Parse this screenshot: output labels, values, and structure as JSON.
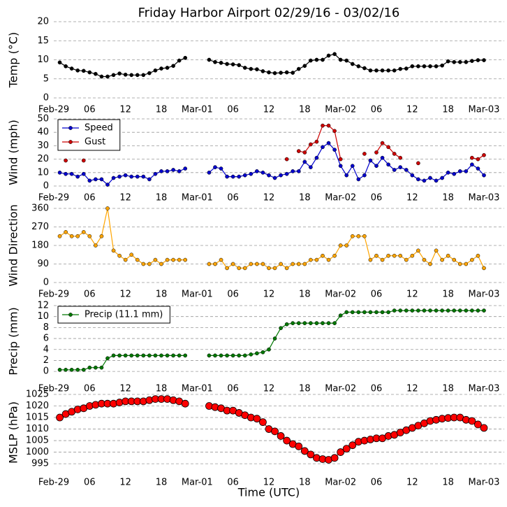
{
  "title": "Friday Harbor Airport 02/29/16 - 03/02/16",
  "x_label": "Time (UTC)",
  "chart_data": [
    {
      "type": "line",
      "y_label": "Temp (°C)",
      "xlim": [
        0,
        72
      ],
      "ylim": [
        0,
        20
      ],
      "yticks": [
        0,
        5,
        10,
        15,
        20
      ],
      "grid": true,
      "xticks": [
        {
          "value": 0,
          "label": "Feb-29"
        },
        {
          "value": 6,
          "label": "06"
        },
        12,
        18,
        {
          "value": 24,
          "label": "Mar-01"
        },
        {
          "value": 30,
          "label": "06"
        },
        {
          "value": 36,
          "label": "12"
        },
        {
          "value": 42,
          "label": "18"
        },
        {
          "value": 48,
          "label": "Mar-02"
        },
        {
          "value": 54,
          "label": "06"
        },
        {
          "value": 60,
          "label": "12"
        },
        {
          "value": 66,
          "label": "18"
        },
        {
          "value": 72,
          "label": "Mar-03"
        }
      ],
      "x": [
        1,
        2,
        3,
        4,
        5,
        6,
        7,
        8,
        9,
        10,
        11,
        12,
        13,
        14,
        15,
        16,
        17,
        18,
        19,
        20,
        21,
        22,
        23,
        24,
        25,
        26,
        27,
        28,
        29,
        30,
        31,
        32,
        33,
        34,
        35,
        36,
        37,
        38,
        39,
        40,
        41,
        42,
        43,
        44,
        45,
        46,
        47,
        48,
        49,
        50,
        51,
        52,
        53,
        54,
        55,
        56,
        57,
        58,
        59,
        60,
        61,
        62,
        63,
        64,
        65,
        66,
        67,
        68,
        69,
        70,
        71,
        72
      ],
      "series": [
        {
          "color": "#000000",
          "values": [
            9.3,
            8.3,
            7.7,
            7.2,
            7.1,
            6.7,
            6.3,
            5.6,
            5.6,
            6,
            6.4,
            6.1,
            6,
            6,
            6,
            6.5,
            7.2,
            7.7,
            7.9,
            8.4,
            9.8,
            10.5,
            null,
            null,
            null,
            10,
            9.4,
            9.2,
            8.9,
            8.8,
            8.6,
            7.9,
            7.6,
            7.5,
            7,
            6.7,
            6.5,
            6.6,
            6.7,
            6.6,
            7.6,
            8.4,
            9.8,
            10,
            10,
            11.1,
            11.5,
            10,
            9.8,
            8.9,
            8.3,
            7.8,
            7.2,
            7.2,
            7.2,
            7.2,
            7.2,
            7.6,
            7.7,
            8.3,
            8.3,
            8.3,
            8.3,
            8.3,
            8.5,
            9.6,
            9.4,
            9.4,
            9.4,
            9.7,
            9.9,
            9.9
          ]
        }
      ]
    },
    {
      "type": "line",
      "y_label": "Wind (mph)",
      "xlim": [
        0,
        72
      ],
      "ylim": [
        0,
        50
      ],
      "yticks": [
        0,
        10,
        20,
        30,
        40,
        50
      ],
      "grid": true,
      "legend": "upper left",
      "xticks": [
        {
          "value": 0,
          "label": "Feb-29"
        },
        {
          "value": 6,
          "label": "06"
        },
        12,
        18,
        {
          "value": 24,
          "label": "Mar-01"
        },
        {
          "value": 30,
          "label": "06"
        },
        {
          "value": 36,
          "label": "12"
        },
        {
          "value": 42,
          "label": "18"
        },
        {
          "value": 48,
          "label": "Mar-02"
        },
        {
          "value": 54,
          "label": "06"
        },
        {
          "value": 60,
          "label": "12"
        },
        {
          "value": 66,
          "label": "18"
        },
        {
          "value": 72,
          "label": "Mar-03"
        }
      ],
      "x": [
        1,
        2,
        3,
        4,
        5,
        6,
        7,
        8,
        9,
        10,
        11,
        12,
        13,
        14,
        15,
        16,
        17,
        18,
        19,
        20,
        21,
        22,
        23,
        24,
        25,
        26,
        27,
        28,
        29,
        30,
        31,
        32,
        33,
        34,
        35,
        36,
        37,
        38,
        39,
        40,
        41,
        42,
        43,
        44,
        45,
        46,
        47,
        48,
        49,
        50,
        51,
        52,
        53,
        54,
        55,
        56,
        57,
        58,
        59,
        60,
        61,
        62,
        63,
        64,
        65,
        66,
        67,
        68,
        69,
        70,
        71,
        72
      ],
      "series": [
        {
          "name": "Speed",
          "color": "#0000cc",
          "values": [
            10,
            9,
            9,
            7,
            9,
            4,
            5,
            5,
            1,
            6,
            7,
            8,
            7,
            7,
            7,
            5,
            9,
            11,
            11,
            12,
            11,
            13,
            null,
            null,
            null,
            10,
            14,
            13,
            7,
            7,
            7,
            8,
            9,
            11,
            10,
            8,
            6,
            8,
            9,
            11,
            11,
            18,
            14,
            21,
            29,
            32,
            27,
            15,
            8,
            15,
            5,
            8,
            19,
            15,
            21,
            16,
            12,
            14,
            12,
            8,
            5,
            4,
            6,
            4,
            6,
            10,
            9,
            11,
            11,
            16,
            13,
            8
          ]
        },
        {
          "name": "Gust",
          "color": "#cc0000",
          "values": [
            null,
            19,
            null,
            null,
            19,
            null,
            null,
            null,
            null,
            null,
            null,
            null,
            null,
            null,
            null,
            null,
            null,
            null,
            null,
            null,
            null,
            null,
            null,
            null,
            null,
            null,
            null,
            null,
            null,
            null,
            null,
            null,
            null,
            null,
            null,
            null,
            null,
            null,
            20,
            null,
            26,
            25,
            31,
            33,
            45,
            45,
            41,
            20,
            null,
            null,
            null,
            24,
            null,
            25,
            32,
            29,
            24,
            21,
            null,
            null,
            17,
            null,
            null,
            null,
            null,
            null,
            null,
            null,
            null,
            21,
            20,
            23
          ]
        }
      ]
    },
    {
      "type": "line",
      "y_label": "Wind Direction",
      "xlim": [
        0,
        72
      ],
      "ylim": [
        0,
        360
      ],
      "yticks": [
        0,
        90,
        180,
        270,
        360
      ],
      "grid": true,
      "xticks": [
        {
          "value": 0,
          "label": "Feb-29"
        },
        {
          "value": 6,
          "label": "06"
        },
        12,
        18,
        {
          "value": 24,
          "label": "Mar-01"
        },
        {
          "value": 30,
          "label": "06"
        },
        {
          "value": 36,
          "label": "12"
        },
        {
          "value": 42,
          "label": "18"
        },
        {
          "value": 48,
          "label": "Mar-02"
        },
        {
          "value": 54,
          "label": "06"
        },
        {
          "value": 60,
          "label": "12"
        },
        {
          "value": 66,
          "label": "18"
        },
        {
          "value": 72,
          "label": "Mar-03"
        }
      ],
      "x": [
        1,
        2,
        3,
        4,
        5,
        6,
        7,
        8,
        9,
        10,
        11,
        12,
        13,
        14,
        15,
        16,
        17,
        18,
        19,
        20,
        21,
        22,
        23,
        24,
        25,
        26,
        27,
        28,
        29,
        30,
        31,
        32,
        33,
        34,
        35,
        36,
        37,
        38,
        39,
        40,
        41,
        42,
        43,
        44,
        45,
        46,
        47,
        48,
        49,
        50,
        51,
        52,
        53,
        54,
        55,
        56,
        57,
        58,
        59,
        60,
        61,
        62,
        63,
        64,
        65,
        66,
        67,
        68,
        69,
        70,
        71,
        72
      ],
      "series": [
        {
          "color": "#ffa500",
          "values": [
            225,
            245,
            225,
            225,
            245,
            225,
            180,
            225,
            360,
            155,
            130,
            110,
            135,
            110,
            90,
            90,
            110,
            90,
            110,
            110,
            110,
            110,
            null,
            null,
            null,
            90,
            90,
            110,
            70,
            90,
            70,
            70,
            90,
            90,
            90,
            70,
            70,
            90,
            70,
            90,
            90,
            90,
            110,
            110,
            130,
            110,
            130,
            180,
            180,
            225,
            225,
            225,
            110,
            130,
            110,
            130,
            130,
            130,
            110,
            130,
            155,
            110,
            90,
            155,
            110,
            130,
            110,
            90,
            90,
            110,
            130,
            70
          ]
        }
      ]
    },
    {
      "type": "line",
      "y_label": "Precip (mm)",
      "xlim": [
        0,
        72
      ],
      "ylim": [
        -1,
        12
      ],
      "yticks": [
        0,
        2,
        4,
        6,
        8,
        10,
        12
      ],
      "grid": true,
      "legend": "upper left",
      "xticks": [
        {
          "value": 0,
          "label": "Feb-29"
        },
        {
          "value": 6,
          "label": "06"
        },
        12,
        18,
        {
          "value": 24,
          "label": "Mar-01"
        },
        {
          "value": 30,
          "label": "06"
        },
        {
          "value": 36,
          "label": "12"
        },
        {
          "value": 42,
          "label": "18"
        },
        {
          "value": 48,
          "label": "Mar-02"
        },
        {
          "value": 54,
          "label": "06"
        },
        {
          "value": 60,
          "label": "12"
        },
        {
          "value": 66,
          "label": "18"
        },
        {
          "value": 72,
          "label": "Mar-03"
        }
      ],
      "x": [
        1,
        2,
        3,
        4,
        5,
        6,
        7,
        8,
        9,
        10,
        11,
        12,
        13,
        14,
        15,
        16,
        17,
        18,
        19,
        20,
        21,
        22,
        23,
        24,
        25,
        26,
        27,
        28,
        29,
        30,
        31,
        32,
        33,
        34,
        35,
        36,
        37,
        38,
        39,
        40,
        41,
        42,
        43,
        44,
        45,
        46,
        47,
        48,
        49,
        50,
        51,
        52,
        53,
        54,
        55,
        56,
        57,
        58,
        59,
        60,
        61,
        62,
        63,
        64,
        65,
        66,
        67,
        68,
        69,
        70,
        71,
        72
      ],
      "series": [
        {
          "name": "Precip (11.1 mm)",
          "color": "#007700",
          "values": [
            0.3,
            0.3,
            0.3,
            0.3,
            0.3,
            0.7,
            0.7,
            0.7,
            2.4,
            2.9,
            2.9,
            2.9,
            2.9,
            2.9,
            2.9,
            2.9,
            2.9,
            2.9,
            2.9,
            2.9,
            2.9,
            2.9,
            null,
            null,
            null,
            2.9,
            2.9,
            2.9,
            2.9,
            2.9,
            2.9,
            2.9,
            3.1,
            3.3,
            3.5,
            4,
            6,
            7.9,
            8.6,
            8.8,
            8.8,
            8.8,
            8.8,
            8.8,
            8.8,
            8.8,
            8.8,
            10.2,
            10.8,
            10.8,
            10.8,
            10.8,
            10.8,
            10.8,
            10.8,
            10.8,
            11.1,
            11.1,
            11.1,
            11.1,
            11.1,
            11.1,
            11.1,
            11.1,
            11.1,
            11.1,
            11.1,
            11.1,
            11.1,
            11.1,
            11.1,
            11.1
          ]
        }
      ]
    },
    {
      "type": "line",
      "y_label": "MSLP (hPa)",
      "xlim": [
        0,
        72
      ],
      "ylim": [
        992,
        1025
      ],
      "yticks": [
        995,
        1000,
        1005,
        1010,
        1015,
        1020,
        1025
      ],
      "grid": true,
      "xticks": [
        {
          "value": 0,
          "label": "Feb-29"
        },
        {
          "value": 6,
          "label": "06"
        },
        12,
        18,
        {
          "value": 24,
          "label": "Mar-01"
        },
        {
          "value": 30,
          "label": "06"
        },
        {
          "value": 36,
          "label": "12"
        },
        {
          "value": 42,
          "label": "18"
        },
        {
          "value": 48,
          "label": "Mar-02"
        },
        {
          "value": 54,
          "label": "06"
        },
        {
          "value": 60,
          "label": "12"
        },
        {
          "value": 66,
          "label": "18"
        },
        {
          "value": 72,
          "label": "Mar-03"
        }
      ],
      "x": [
        1,
        2,
        3,
        4,
        5,
        6,
        7,
        8,
        9,
        10,
        11,
        12,
        13,
        14,
        15,
        16,
        17,
        18,
        19,
        20,
        21,
        22,
        23,
        24,
        25,
        26,
        27,
        28,
        29,
        30,
        31,
        32,
        33,
        34,
        35,
        36,
        37,
        38,
        39,
        40,
        41,
        42,
        43,
        44,
        45,
        46,
        47,
        48,
        49,
        50,
        51,
        52,
        53,
        54,
        55,
        56,
        57,
        58,
        59,
        60,
        61,
        62,
        63,
        64,
        65,
        66,
        67,
        68,
        69,
        70,
        71,
        72
      ],
      "series": [
        {
          "color": "#ff0000",
          "values": [
            1015,
            1016.5,
            1017.5,
            1018.5,
            1019,
            1020,
            1020.5,
            1021,
            1021,
            1021,
            1021.5,
            1022,
            1022,
            1022,
            1022,
            1022.5,
            1023,
            1023,
            1023,
            1022.5,
            1022,
            1021,
            null,
            null,
            null,
            1020,
            1019.5,
            1019,
            1018,
            1018,
            1017,
            1016,
            1015,
            1014.5,
            1013,
            1010,
            1009,
            1007,
            1005,
            1003.5,
            1002.5,
            1000.5,
            999,
            997.5,
            997,
            996.7,
            997.5,
            1000,
            1001.5,
            1003,
            1004.5,
            1005,
            1005.5,
            1006,
            1006,
            1007,
            1007.5,
            1008.5,
            1009.5,
            1010.5,
            1011.5,
            1012.5,
            1013.5,
            1014,
            1014.5,
            1014.8,
            1015,
            1015,
            1014,
            1013.5,
            1012,
            1010.5
          ]
        }
      ]
    }
  ]
}
